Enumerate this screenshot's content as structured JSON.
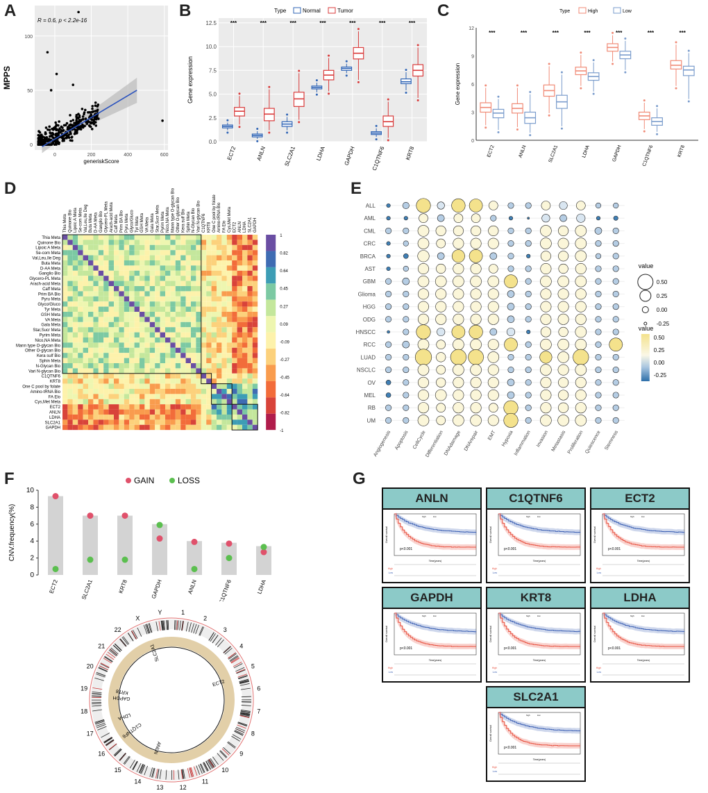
{
  "panels": [
    "A",
    "B",
    "C",
    "D",
    "E",
    "F",
    "G"
  ],
  "panelA": {
    "chart_data": {
      "type": "scatter",
      "title": "",
      "annotation": "R = 0.6, p < 2.2e-16",
      "xlabel": "generiskScore",
      "ylabel": "MPPS",
      "xticks": [
        "0",
        "200",
        "400",
        "600"
      ],
      "yticks": [
        "0",
        "50",
        "100"
      ],
      "xlim": [
        -110,
        620
      ],
      "ylim": [
        -5,
        128
      ],
      "fit": {
        "slope": 0.1,
        "intercept": 5,
        "x_from": -70,
        "x_to": 450
      },
      "outliers": [
        [
          -40,
          85
        ],
        [
          -20,
          50
        ],
        [
          130,
          122
        ],
        [
          10,
          65
        ],
        [
          100,
          55
        ],
        [
          590,
          22
        ]
      ],
      "colors": {
        "point": "#000000",
        "line": "#2a52be",
        "band": "#bbbbbb"
      }
    }
  },
  "panelB": {
    "chart_data": {
      "type": "box",
      "legend_title": "Type",
      "legend": [
        "Normal",
        "Tumor"
      ],
      "ylabel": "Gene expression",
      "ylim": [
        0,
        13
      ],
      "yticks": [
        "0.0",
        "2.5",
        "5.0",
        "7.5",
        "10.0",
        "12.5"
      ],
      "categories": [
        "ECT2",
        "ANLN",
        "SLC2A1",
        "LDHA",
        "GAPDH",
        "C1QTNF6",
        "KRT8"
      ],
      "significance": [
        "***",
        "***",
        "***",
        "***",
        "***",
        "***",
        "***"
      ],
      "series": [
        {
          "name": "Normal",
          "color": "#2f64b5",
          "boxes": [
            [
              1.2,
              1.45,
              1.6,
              1.75,
              2.0
            ],
            [
              0.3,
              0.5,
              0.65,
              0.8,
              1.1
            ],
            [
              1.2,
              1.6,
              1.85,
              2.1,
              2.6
            ],
            [
              5.2,
              5.55,
              5.7,
              5.85,
              6.2
            ],
            [
              7.2,
              7.5,
              7.7,
              7.85,
              8.2
            ],
            [
              0.5,
              0.75,
              0.9,
              1.05,
              1.4
            ],
            [
              5.4,
              6.1,
              6.3,
              6.6,
              7.3
            ]
          ]
        },
        {
          "name": "Tumor",
          "color": "#d93a3a",
          "boxes": [
            [
              1.8,
              2.7,
              3.2,
              3.6,
              4.8
            ],
            [
              1.2,
              2.2,
              2.9,
              3.5,
              5.5
            ],
            [
              2.3,
              3.7,
              4.5,
              5.2,
              7.2
            ],
            [
              5.3,
              6.5,
              7.0,
              7.5,
              8.8
            ],
            [
              6.5,
              8.7,
              9.3,
              9.9,
              11.6
            ],
            [
              0.4,
              1.6,
              2.1,
              2.7,
              4.2
            ],
            [
              4.6,
              6.9,
              7.5,
              8.1,
              9.9
            ]
          ]
        }
      ]
    }
  },
  "panelC": {
    "chart_data": {
      "type": "box",
      "legend_title": "Type",
      "legend": [
        "High",
        "Low"
      ],
      "ylabel": "Gene expression",
      "ylim": [
        0,
        12
      ],
      "yticks": [
        "0",
        "3",
        "6",
        "9",
        "12"
      ],
      "categories": [
        "ECT2",
        "ANLN",
        "SLC2A1",
        "LDHA",
        "GAPDH",
        "C1QTNF6",
        "KRT8"
      ],
      "significance": [
        "***",
        "***",
        "***",
        "***",
        "***",
        "***",
        "***"
      ],
      "series": [
        {
          "name": "High",
          "color": "#f08a76",
          "boxes": [
            [
              1.6,
              3.0,
              3.5,
              4.0,
              5.6
            ],
            [
              1.4,
              2.9,
              3.4,
              3.9,
              5.6
            ],
            [
              2.9,
              4.7,
              5.3,
              5.9,
              7.9
            ],
            [
              5.8,
              7.0,
              7.4,
              7.8,
              9.1
            ],
            [
              8.4,
              9.5,
              9.9,
              10.3,
              11.2
            ],
            [
              1.2,
              2.2,
              2.6,
              3.0,
              4.0
            ],
            [
              5.8,
              7.6,
              8.0,
              8.5,
              10.2
            ]
          ]
        },
        {
          "name": "Low",
          "color": "#7a9ccc",
          "boxes": [
            [
              1.1,
              2.4,
              2.9,
              3.3,
              4.4
            ],
            [
              0.8,
              1.8,
              2.4,
              3.0,
              4.9
            ],
            [
              1.5,
              3.4,
              4.1,
              4.8,
              7.0
            ],
            [
              5.2,
              6.4,
              6.8,
              7.2,
              8.3
            ],
            [
              7.5,
              8.7,
              9.1,
              9.5,
              10.6
            ],
            [
              0.9,
              1.6,
              2.0,
              2.4,
              3.4
            ],
            [
              4.4,
              6.9,
              7.5,
              7.9,
              9.3
            ]
          ]
        }
      ]
    }
  },
  "panelD": {
    "chart_data": {
      "type": "heatmap",
      "labels": [
        "Thia Meta",
        "Quinone Bio",
        "Lipoic A Meta",
        "Se-com Meta",
        "Val,Leu,Ile Deg",
        "Buta Meta",
        "D-AA Meta",
        "Ganglio Bio",
        "Glycero-PL Meta",
        "Arach-acid Meta",
        "Caff Meta",
        "Prim BA Bio",
        "Pyru Meta",
        "Glyco/Gluco",
        "Tyr Meta",
        "GSH Meta",
        "VA Meta",
        "Gala Meta",
        "Star,Sucr Meta",
        "Pyrim Meta",
        "Nico,NA Meta",
        "Mann type O-glycan Bio",
        "Other O-glycan Bio",
        "Kera sulf Bio",
        "Sphin Meta",
        "N-Glycan Bio",
        "Vari N-glycan Bio",
        "C1QTNF6",
        "KRT8",
        "One C pool by folate",
        "Amino-tRNA Bio",
        "FA Elo",
        "Cys,Met Meta",
        "ECT2",
        "ANLN",
        "LDHA",
        "SLC2A1",
        "GAPDH"
      ],
      "scale_ticks": [
        "1",
        "0.82",
        "0.64",
        "0.45",
        "0.27",
        "0.09",
        "-0.09",
        "-0.27",
        "-0.45",
        "-0.64",
        "-0.82",
        "-1"
      ],
      "colors": [
        "#b01c4b",
        "#d8433a",
        "#f26c3a",
        "#f99c4e",
        "#fcd17c",
        "#fdf2ab",
        "#eef6b0",
        "#c4e79c",
        "#7cc9a3",
        "#3d9db5",
        "#3f6cb3",
        "#6a4ea3"
      ]
    }
  },
  "panelE": {
    "chart_data": {
      "type": "bubble",
      "rows": [
        "ALL",
        "AML",
        "CML",
        "CRC",
        "BRCA",
        "AST",
        "GBM",
        "Glioma",
        "HGG",
        "ODG",
        "HNSCC",
        "RCC",
        "LUAD",
        "NSCLC",
        "OV",
        "MEL",
        "RB",
        "UM"
      ],
      "cols": [
        "Angiogenesis",
        "Apoptosis",
        "CellCycle",
        "Differentiation",
        "DNAdamage",
        "DNArepair",
        "EMT",
        "Hypoxia",
        "Inflammation",
        "Invasion",
        "Metastasis",
        "Proliferation",
        "Quiescence",
        "Stemness"
      ],
      "size_legend_title": "value",
      "size_legend": [
        "0.50",
        "0.25",
        "0.00",
        "-0.25"
      ],
      "color_legend_title": "value",
      "color_legend": [
        "0.50",
        "0.25",
        "0.00",
        "-0.25"
      ],
      "values": [
        [
          -0.05,
          0.08,
          0.45,
          0.12,
          0.42,
          0.4,
          0.2,
          0.05,
          0.05,
          0.2,
          0.15,
          0.2,
          0.02,
          0.02
        ],
        [
          -0.05,
          -0.05,
          0.2,
          0.1,
          0.2,
          0.2,
          0.05,
          -0.05,
          -0.15,
          0.15,
          0.1,
          0.18,
          -0.05,
          -0.02
        ],
        [
          0.05,
          0.05,
          0.3,
          0.25,
          0.25,
          0.25,
          0.25,
          0.05,
          0.05,
          0.3,
          0.25,
          0.3,
          0.1,
          0.05
        ],
        [
          -0.05,
          0.02,
          0.3,
          0.2,
          0.28,
          0.28,
          0.28,
          0.05,
          0.05,
          0.3,
          0.28,
          0.3,
          0.05,
          0.05
        ],
        [
          -0.05,
          0.0,
          0.32,
          0.1,
          0.38,
          0.4,
          0.1,
          0.05,
          -0.05,
          0.25,
          0.25,
          0.3,
          0.02,
          0.05
        ],
        [
          -0.05,
          0.02,
          0.28,
          0.22,
          0.28,
          0.28,
          0.2,
          0.05,
          0.05,
          0.28,
          0.22,
          0.28,
          0.05,
          0.05
        ],
        [
          0.05,
          0.1,
          0.3,
          0.3,
          0.3,
          0.3,
          0.3,
          0.4,
          0.05,
          0.3,
          0.3,
          0.3,
          0.05,
          0.05
        ],
        [
          0.05,
          0.05,
          0.28,
          0.28,
          0.28,
          0.28,
          0.28,
          0.1,
          0.05,
          0.28,
          0.28,
          0.28,
          0.05,
          0.05
        ],
        [
          0.05,
          0.05,
          0.28,
          0.28,
          0.28,
          0.28,
          0.28,
          0.1,
          0.05,
          0.28,
          0.28,
          0.28,
          0.05,
          0.05
        ],
        [
          0.05,
          0.05,
          0.28,
          0.28,
          0.28,
          0.28,
          0.28,
          0.1,
          0.05,
          0.28,
          0.28,
          0.28,
          0.05,
          0.05
        ],
        [
          -0.1,
          0.05,
          0.45,
          0.15,
          0.4,
          0.42,
          0.1,
          0.15,
          -0.05,
          0.25,
          0.22,
          0.3,
          0.05,
          0.05
        ],
        [
          0.05,
          0.1,
          0.3,
          0.2,
          0.3,
          0.3,
          0.28,
          0.4,
          0.05,
          0.3,
          0.3,
          0.3,
          0.05,
          0.4
        ],
        [
          0.05,
          0.05,
          0.55,
          0.22,
          0.52,
          0.5,
          0.3,
          0.05,
          0.05,
          0.35,
          0.3,
          0.52,
          0.05,
          0.05
        ],
        [
          0.05,
          0.05,
          0.3,
          0.2,
          0.3,
          0.3,
          0.28,
          0.05,
          0.05,
          0.3,
          0.28,
          0.3,
          0.05,
          0.05
        ],
        [
          0.0,
          0.05,
          0.28,
          0.22,
          0.28,
          0.28,
          0.28,
          0.1,
          0.05,
          0.28,
          0.25,
          0.28,
          0.05,
          0.05
        ],
        [
          0.0,
          0.05,
          0.28,
          0.3,
          0.28,
          0.28,
          0.28,
          0.1,
          0.05,
          0.28,
          0.25,
          0.28,
          0.05,
          0.05
        ],
        [
          0.05,
          0.05,
          0.28,
          0.2,
          0.28,
          0.28,
          0.2,
          0.45,
          0.05,
          0.28,
          0.25,
          0.28,
          0.05,
          0.05
        ],
        [
          0.05,
          0.05,
          0.3,
          0.2,
          0.3,
          0.3,
          0.28,
          0.45,
          0.05,
          0.3,
          0.3,
          0.3,
          0.05,
          0.05
        ]
      ]
    }
  },
  "panelF": {
    "chart_data": {
      "type": "bar-dot",
      "legend": [
        "GAIN",
        "LOSS"
      ],
      "ylabel": "CNV.frequency(%)",
      "ylim": [
        0,
        10
      ],
      "yticks": [
        "0",
        "2",
        "4",
        "6",
        "8",
        "10"
      ],
      "categories": [
        "ECT2",
        "SLC2A1",
        "KRT8",
        "GAPDH",
        "ANLN",
        "C1QTNF6",
        "LDHA"
      ],
      "bars": [
        9.3,
        7.0,
        7.0,
        6.0,
        4.0,
        3.8,
        3.4
      ],
      "gain": [
        9.3,
        7.0,
        7.0,
        4.3,
        3.9,
        3.7,
        2.7
      ],
      "loss": [
        0.7,
        1.8,
        1.8,
        5.9,
        0.7,
        2.0,
        3.3
      ],
      "colors": {
        "gain": "#e0516b",
        "loss": "#5bbf4f",
        "bar": "#d3d3d3"
      }
    },
    "circos": {
      "chromosomes": [
        "1",
        "2",
        "3",
        "4",
        "5",
        "6",
        "7",
        "8",
        "9",
        "10",
        "11",
        "12",
        "13",
        "14",
        "15",
        "16",
        "17",
        "18",
        "19",
        "20",
        "21",
        "22",
        "X",
        "Y"
      ],
      "gene_labels": [
        "SLC2A1",
        "C1QTNF6",
        "ECT2",
        "ANLN",
        "LDHA",
        "KRT8",
        "GAPDH"
      ]
    }
  },
  "panelG": {
    "genes": [
      "ANLN",
      "C1QTNF6",
      "ECT2",
      "GAPDH",
      "KRT8",
      "LDHA",
      "SLC2A1"
    ],
    "pval": "p<0.001",
    "xlabel": "Time(years)",
    "ylabel": "Overall survival",
    "legend_high": "high",
    "legend_low": "low",
    "risk_high": "High",
    "risk_low": "Low",
    "colors": {
      "high": "#e8503f",
      "low": "#3a5fb3",
      "header": "#8ccac8"
    }
  }
}
